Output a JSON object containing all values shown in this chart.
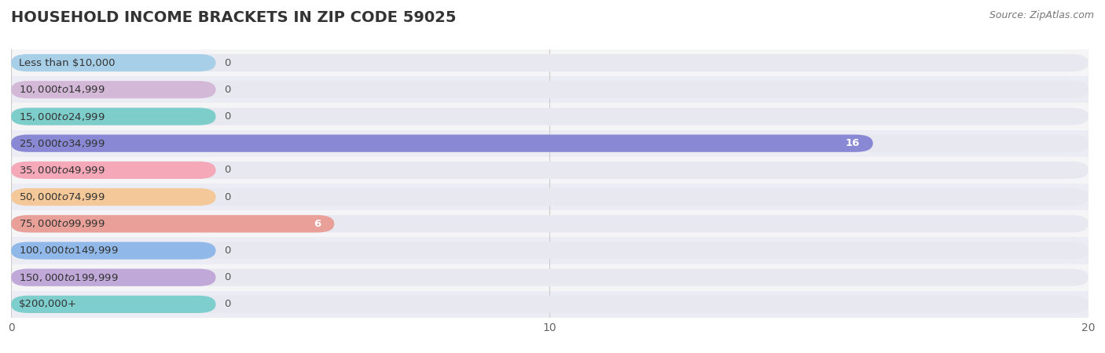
{
  "title": "HOUSEHOLD INCOME BRACKETS IN ZIP CODE 59025",
  "source": "Source: ZipAtlas.com",
  "categories": [
    "Less than $10,000",
    "$10,000 to $14,999",
    "$15,000 to $24,999",
    "$25,000 to $34,999",
    "$35,000 to $49,999",
    "$50,000 to $74,999",
    "$75,000 to $99,999",
    "$100,000 to $149,999",
    "$150,000 to $199,999",
    "$200,000+"
  ],
  "values": [
    0,
    0,
    0,
    16,
    0,
    0,
    6,
    0,
    0,
    0
  ],
  "bar_colors": [
    "#a8cfe8",
    "#d4b8d8",
    "#7dceca",
    "#8888d4",
    "#f4a8b8",
    "#f4c898",
    "#e8a098",
    "#90b8e8",
    "#c0a8d8",
    "#7ecece"
  ],
  "xlim": [
    0,
    20
  ],
  "xticks": [
    0,
    10,
    20
  ],
  "title_fontsize": 14,
  "label_fontsize": 9.5,
  "value_fontsize": 9.5,
  "background_color": "#ffffff",
  "bar_bg_color": "#e8e8f0",
  "row_color_even": "#f5f5f8",
  "row_color_odd": "#ececf4"
}
